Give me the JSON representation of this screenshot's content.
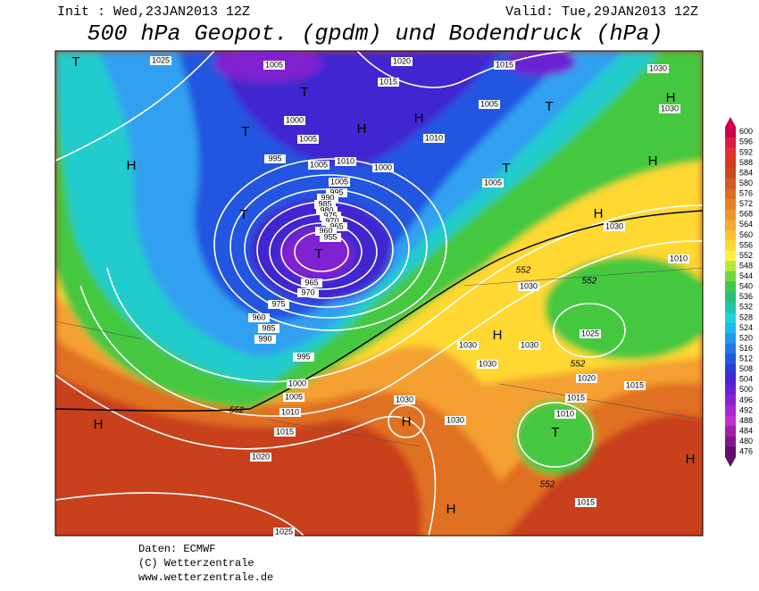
{
  "header": {
    "init": "Init : Wed,23JAN2013 12Z",
    "valid": "Valid: Tue,29JAN2013 12Z",
    "title": "500 hPa Geopot. (gpdm) und Bodendruck (hPa)"
  },
  "footer": [
    "Daten: ECMWF",
    "(C) Wetterzentrale",
    "www.wetterzentrale.de"
  ],
  "colorbar": {
    "labels": [
      "600",
      "596",
      "592",
      "588",
      "584",
      "580",
      "576",
      "572",
      "568",
      "564",
      "560",
      "556",
      "552",
      "548",
      "544",
      "540",
      "536",
      "532",
      "528",
      "524",
      "520",
      "516",
      "512",
      "508",
      "504",
      "500",
      "496",
      "492",
      "488",
      "484",
      "480",
      "476"
    ],
    "colors": [
      "#d0004a",
      "#dc1c40",
      "#e43030",
      "#d43a20",
      "#c84a1c",
      "#d45a20",
      "#e06c24",
      "#e88028",
      "#f0942c",
      "#f8aa30",
      "#ffc030",
      "#ffd834",
      "#fff040",
      "#b8e83c",
      "#70d840",
      "#40c848",
      "#28c078",
      "#20c8a8",
      "#20d4d8",
      "#20b8f0",
      "#2098f0",
      "#2078e8",
      "#2058e0",
      "#3038d8",
      "#4c24d0",
      "#6c20d0",
      "#8c20d0",
      "#a828d0",
      "#c030d0",
      "#a020a8",
      "#801888",
      "#601068"
    ]
  },
  "isobar_labels": [
    "1025",
    "1005",
    "1020",
    "1015",
    "1030",
    "1015",
    "1005",
    "1030",
    "1000",
    "1010",
    "1005",
    "995",
    "1005",
    "1010",
    "1000",
    "1005",
    "1005",
    "995",
    "990",
    "985",
    "980",
    "975",
    "970",
    "965",
    "960",
    "955",
    "1030",
    "1010",
    "1030",
    "965",
    "970",
    "975",
    "960",
    "985",
    "990",
    "1025",
    "1030",
    "1030",
    "1030",
    "995",
    "1020",
    "1015",
    "1000",
    "1005",
    "1030",
    "1015",
    "1010",
    "1010",
    "1030",
    "1015",
    "1020",
    "1015",
    "1025"
  ],
  "contour_labels": [
    "552",
    "552",
    "552",
    "552",
    "552"
  ],
  "systems": [
    "T",
    "H",
    "T",
    "T",
    "H",
    "H",
    "T",
    "H",
    "H",
    "T",
    "T",
    "T",
    "H",
    "H",
    "H",
    "T",
    "H",
    "H",
    "H"
  ]
}
